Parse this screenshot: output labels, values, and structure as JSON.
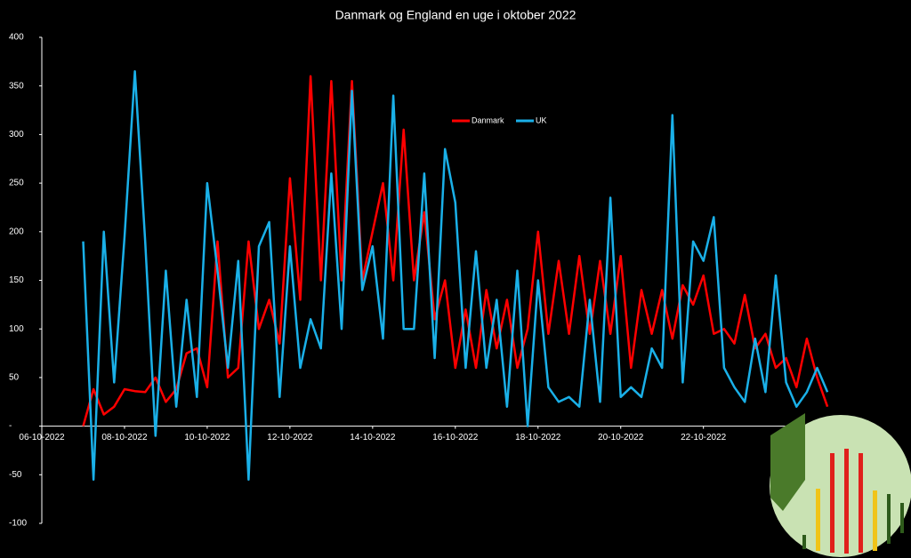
{
  "chart_data": {
    "type": "line",
    "title": "Danmark og England en uge i oktober 2022",
    "x": [
      7,
      7.25,
      7.5,
      7.75,
      8,
      8.25,
      8.5,
      8.75,
      9,
      9.25,
      9.5,
      9.75,
      10,
      10.25,
      10.5,
      10.75,
      11,
      11.25,
      11.5,
      11.75,
      12,
      12.25,
      12.5,
      12.75,
      13,
      13.25,
      13.5,
      13.75,
      14,
      14.25,
      14.5,
      14.75,
      15,
      15.25,
      15.5,
      15.75,
      16,
      16.25,
      16.5,
      16.75,
      17,
      17.25,
      17.5,
      17.75,
      18,
      18.25,
      18.5,
      18.75,
      19,
      19.25,
      19.5,
      19.75,
      20,
      20.25,
      20.5,
      20.75,
      21,
      21.25,
      21.5,
      21.75,
      22,
      22.25,
      22.5,
      22.75,
      23,
      23.25,
      23.5,
      23.75,
      24,
      24.25,
      24.5,
      24.75,
      25
    ],
    "series": [
      {
        "name": "Danmark",
        "color": "#ff0000",
        "values": [
          0,
          38,
          12,
          20,
          38,
          36,
          35,
          50,
          25,
          38,
          75,
          80,
          40,
          190,
          50,
          60,
          190,
          100,
          130,
          85,
          255,
          130,
          360,
          150,
          355,
          150,
          355,
          150,
          200,
          250,
          150,
          305,
          150,
          220,
          110,
          150,
          60,
          120,
          60,
          140,
          80,
          130,
          60,
          100,
          200,
          95,
          170,
          95,
          175,
          95,
          170,
          95,
          175,
          60,
          140,
          95,
          140,
          90,
          145,
          125,
          155,
          95,
          100,
          85,
          135,
          80,
          95,
          60,
          70,
          40,
          90,
          50,
          20
        ]
      },
      {
        "name": "UK",
        "color": "#1ab0e8",
        "values": [
          190,
          -55,
          200,
          45,
          195,
          365,
          190,
          -10,
          160,
          20,
          130,
          30,
          250,
          160,
          60,
          170,
          -55,
          185,
          210,
          30,
          185,
          60,
          110,
          80,
          260,
          100,
          345,
          140,
          185,
          90,
          340,
          100,
          100,
          260,
          70,
          285,
          230,
          60,
          180,
          60,
          130,
          20,
          160,
          0,
          150,
          40,
          25,
          30,
          20,
          130,
          25,
          235,
          30,
          40,
          30,
          80,
          60,
          320,
          45,
          190,
          170,
          215,
          60,
          40,
          25,
          90,
          35,
          155,
          45,
          20,
          35,
          60,
          35
        ]
      }
    ],
    "xlim": [
      6,
      25.6
    ],
    "xticks": [
      {
        "value": 6,
        "label": "06-10-2022"
      },
      {
        "value": 8,
        "label": "08-10-2022"
      },
      {
        "value": 10,
        "label": "10-10-2022"
      },
      {
        "value": 12,
        "label": "12-10-2022"
      },
      {
        "value": 14,
        "label": "14-10-2022"
      },
      {
        "value": 16,
        "label": "16-10-2022"
      },
      {
        "value": 18,
        "label": "18-10-2022"
      },
      {
        "value": 20,
        "label": "20-10-2022"
      },
      {
        "value": 22,
        "label": "22-10-2022"
      }
    ],
    "ylim": [
      -100,
      400
    ],
    "yticks": [
      -100,
      -50,
      {
        "value": 0,
        "label": "-"
      },
      50,
      100,
      150,
      200,
      250,
      300,
      350,
      400
    ]
  }
}
